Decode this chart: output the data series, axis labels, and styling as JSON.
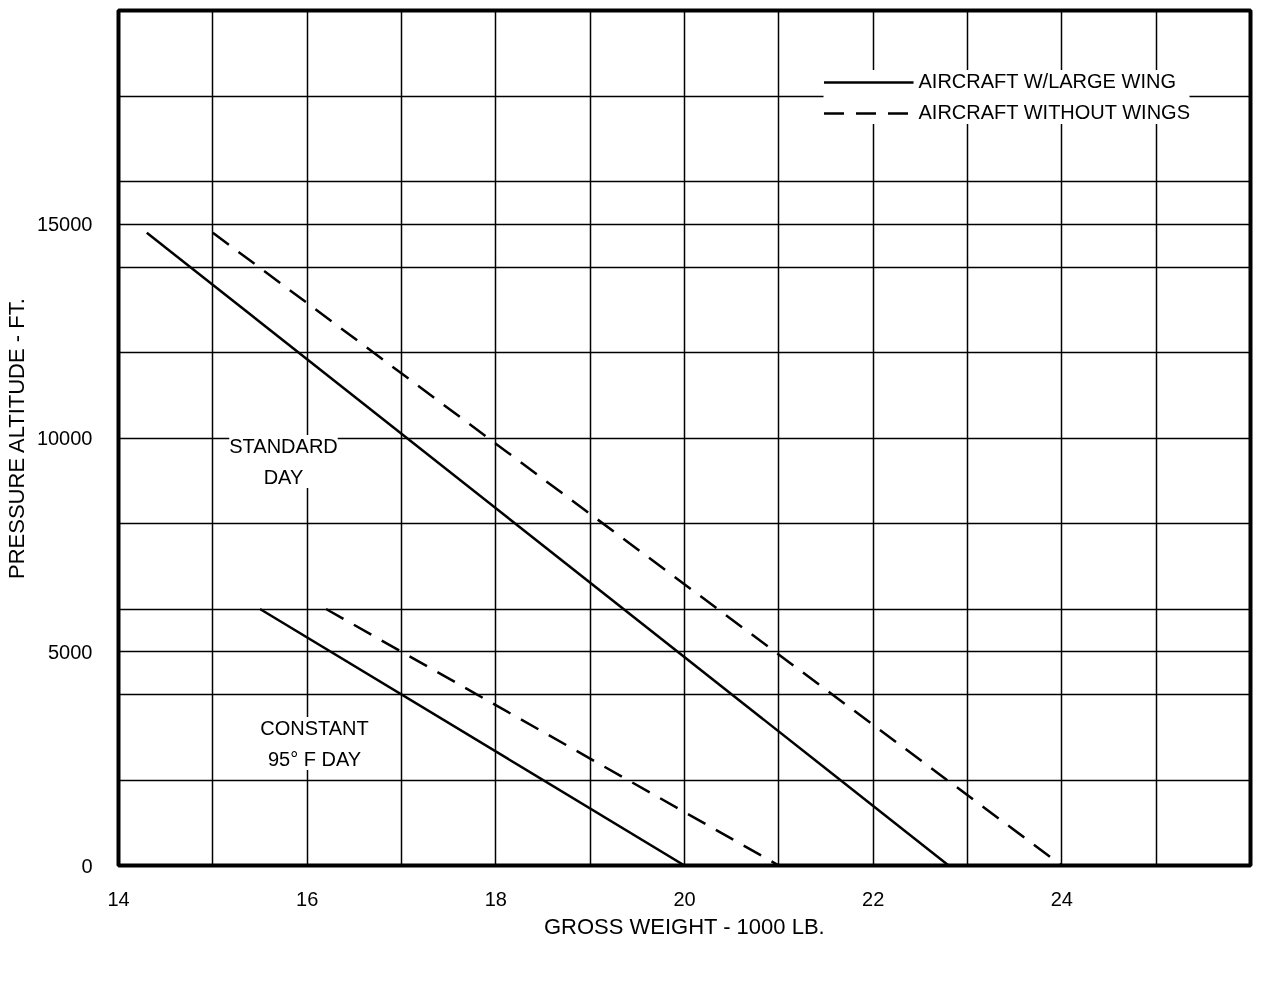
{
  "chart_data": {
    "type": "line",
    "xlabel": "GROSS WEIGHT - 1000 LB.",
    "ylabel": "PRESSURE ALTITUDE - FT.",
    "xlim": [
      14,
      26
    ],
    "ylim": [
      0,
      20000
    ],
    "xticks": [
      14,
      {
        "value": 15,
        "label": null
      },
      16,
      {
        "value": 17,
        "label": null
      },
      18,
      {
        "value": 19,
        "label": null
      },
      20,
      {
        "value": 21,
        "label": null
      },
      22,
      {
        "value": 23,
        "label": null
      },
      24,
      {
        "value": 25,
        "label": null
      },
      {
        "value": 26,
        "label": null
      }
    ],
    "yticks": [
      0,
      {
        "value": 2000,
        "label": null
      },
      {
        "value": 4000,
        "label": null
      },
      5000,
      {
        "value": 6000,
        "label": null
      },
      {
        "value": 8000,
        "label": null
      },
      10000,
      {
        "value": 12000,
        "label": null
      },
      {
        "value": 14000,
        "label": null
      },
      15000,
      {
        "value": 16000,
        "label": null
      },
      {
        "value": 18000,
        "label": null
      },
      {
        "value": 20000,
        "label": null
      }
    ],
    "grid": true,
    "legend": "top right",
    "marker": "none",
    "series": [
      {
        "name": "AIRCRAFT W/LARGE WING",
        "color": "#000000",
        "line_style": "solid",
        "x": [
          14.3,
          22.8
        ],
        "values": [
          14800,
          0
        ]
      },
      {
        "name": "AIRCRAFT WITHOUT WINGS",
        "color": "#000000",
        "line_style": "dashed",
        "x": [
          15,
          24
        ],
        "values": [
          14800,
          0
        ]
      },
      {
        "color": "#000000",
        "line_style": "solid",
        "x": [
          15.5,
          20
        ],
        "values": [
          6000,
          0
        ]
      },
      {
        "color": "#000000",
        "line_style": "dashed",
        "x": [
          16.2,
          21
        ],
        "values": [
          6000,
          0
        ]
      }
    ],
    "annotations": [
      "STANDARD\nDAY",
      "CONSTANT\n95° F DAY"
    ]
  }
}
